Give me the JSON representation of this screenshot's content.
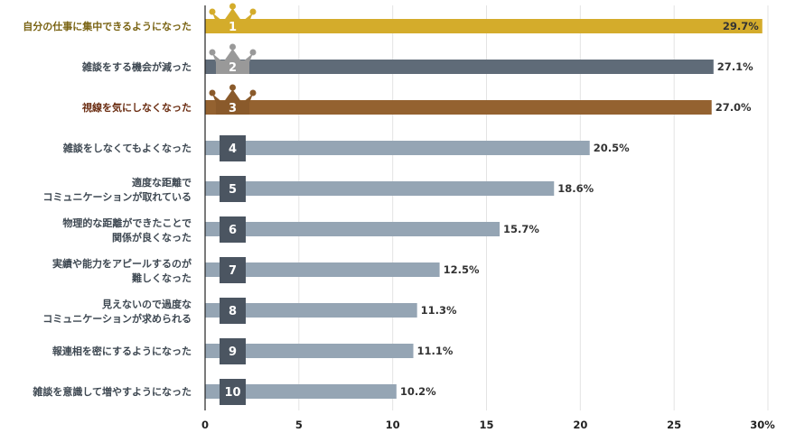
{
  "chart_data": {
    "type": "bar",
    "orientation": "horizontal",
    "categories": [
      [
        "自分の仕事に集中できるようになった"
      ],
      [
        "雑談をする機会が減った"
      ],
      [
        "視線を気にしなくなった"
      ],
      [
        "雑談をしなくてもよくなった"
      ],
      [
        "適度な距離で",
        "コミュニケーションが取れている"
      ],
      [
        "物理的な距離ができたことで",
        "関係が良くなった"
      ],
      [
        "実績や能力をアピールするのが",
        "難しくなった"
      ],
      [
        "見えないので過度な",
        "コミュニケーションが求められる"
      ],
      [
        "報連相を密にするようになった"
      ],
      [
        "雑談を意識して増やすようになった"
      ]
    ],
    "values": [
      29.7,
      27.1,
      27.0,
      20.5,
      18.6,
      15.7,
      12.5,
      11.3,
      11.1,
      10.2
    ],
    "value_labels": [
      "29.7%",
      "27.1%",
      "27.0%",
      "20.5%",
      "18.6%",
      "15.7%",
      "12.5%",
      "11.3%",
      "11.1%",
      "10.2%"
    ],
    "ranks": [
      "1",
      "2",
      "3",
      "4",
      "5",
      "6",
      "7",
      "8",
      "9",
      "10"
    ],
    "xlim": [
      0,
      30
    ],
    "x_ticks": [
      0,
      5,
      10,
      15,
      20,
      25,
      30
    ],
    "x_tick_labels": [
      "0",
      "5",
      "10",
      "15",
      "20",
      "25",
      "30%"
    ],
    "grid": true,
    "colors": {
      "bars": [
        "#d4ac2b",
        "#5f6b78",
        "#946230",
        "#95a5b4",
        "#95a5b4",
        "#95a5b4",
        "#95a5b4",
        "#95a5b4",
        "#95a5b4",
        "#95a5b4"
      ],
      "label_text": [
        "#7a6414",
        "#3e4852",
        "#6b2d12",
        "#3e4852",
        "#3e4852",
        "#3e4852",
        "#3e4852",
        "#3e4852",
        "#3e4852",
        "#3e4852"
      ],
      "crowns": [
        "#d4ac2b",
        "#999999",
        "#8a5a2b"
      ],
      "rank_box": "#4b5561",
      "grid": "#e3e3e3",
      "axis": "#222222"
    }
  }
}
